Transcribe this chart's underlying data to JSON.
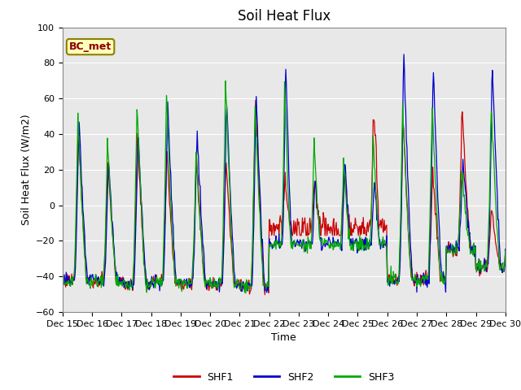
{
  "title": "Soil Heat Flux",
  "ylabel": "Soil Heat Flux (W/m2)",
  "xlabel": "Time",
  "ylim": [
    -60,
    100
  ],
  "xlim": [
    0,
    360
  ],
  "yticks": [
    -60,
    -40,
    -20,
    0,
    20,
    40,
    60,
    80,
    100
  ],
  "xtick_positions": [
    0,
    24,
    48,
    72,
    96,
    120,
    144,
    168,
    192,
    216,
    240,
    264,
    288,
    312,
    336,
    360
  ],
  "xtick_labels": [
    "Dec 15",
    "Dec 16",
    "Dec 17",
    "Dec 18",
    "Dec 19",
    "Dec 20",
    "Dec 21",
    "Dec 22",
    "Dec 23",
    "Dec 24",
    "Dec 25",
    "Dec 26",
    "Dec 27",
    "Dec 28",
    "Dec 29",
    "Dec 30"
  ],
  "line_colors": [
    "#cc0000",
    "#0000cc",
    "#00aa00"
  ],
  "line_labels": [
    "SHF1",
    "SHF2",
    "SHF3"
  ],
  "annotation_text": "BC_met",
  "background_color": "#e8e8e8",
  "fig_background": "#ffffff",
  "title_fontsize": 12,
  "axis_fontsize": 9,
  "tick_fontsize": 8,
  "legend_fontsize": 9,
  "grid_color": "#ffffff",
  "day_peaks_shf1": [
    45,
    26,
    42,
    31,
    30,
    28,
    65,
    10,
    10,
    10,
    58,
    52,
    20,
    55,
    0,
    0
  ],
  "day_peaks_shf2": [
    50,
    25,
    42,
    60,
    44,
    60,
    65,
    83,
    16,
    27,
    15,
    88,
    79,
    25,
    81,
    0
  ],
  "day_peaks_shf3": [
    48,
    37,
    58,
    62,
    30,
    70,
    55,
    68,
    38,
    27,
    40,
    55,
    56,
    20,
    55,
    0
  ],
  "day_troughs": [
    -42,
    -43,
    -44,
    -43,
    -44,
    -44,
    -46,
    -25,
    -25,
    -32,
    -25,
    -42,
    -42,
    -25,
    -35,
    -28
  ],
  "noise_seed": 77
}
